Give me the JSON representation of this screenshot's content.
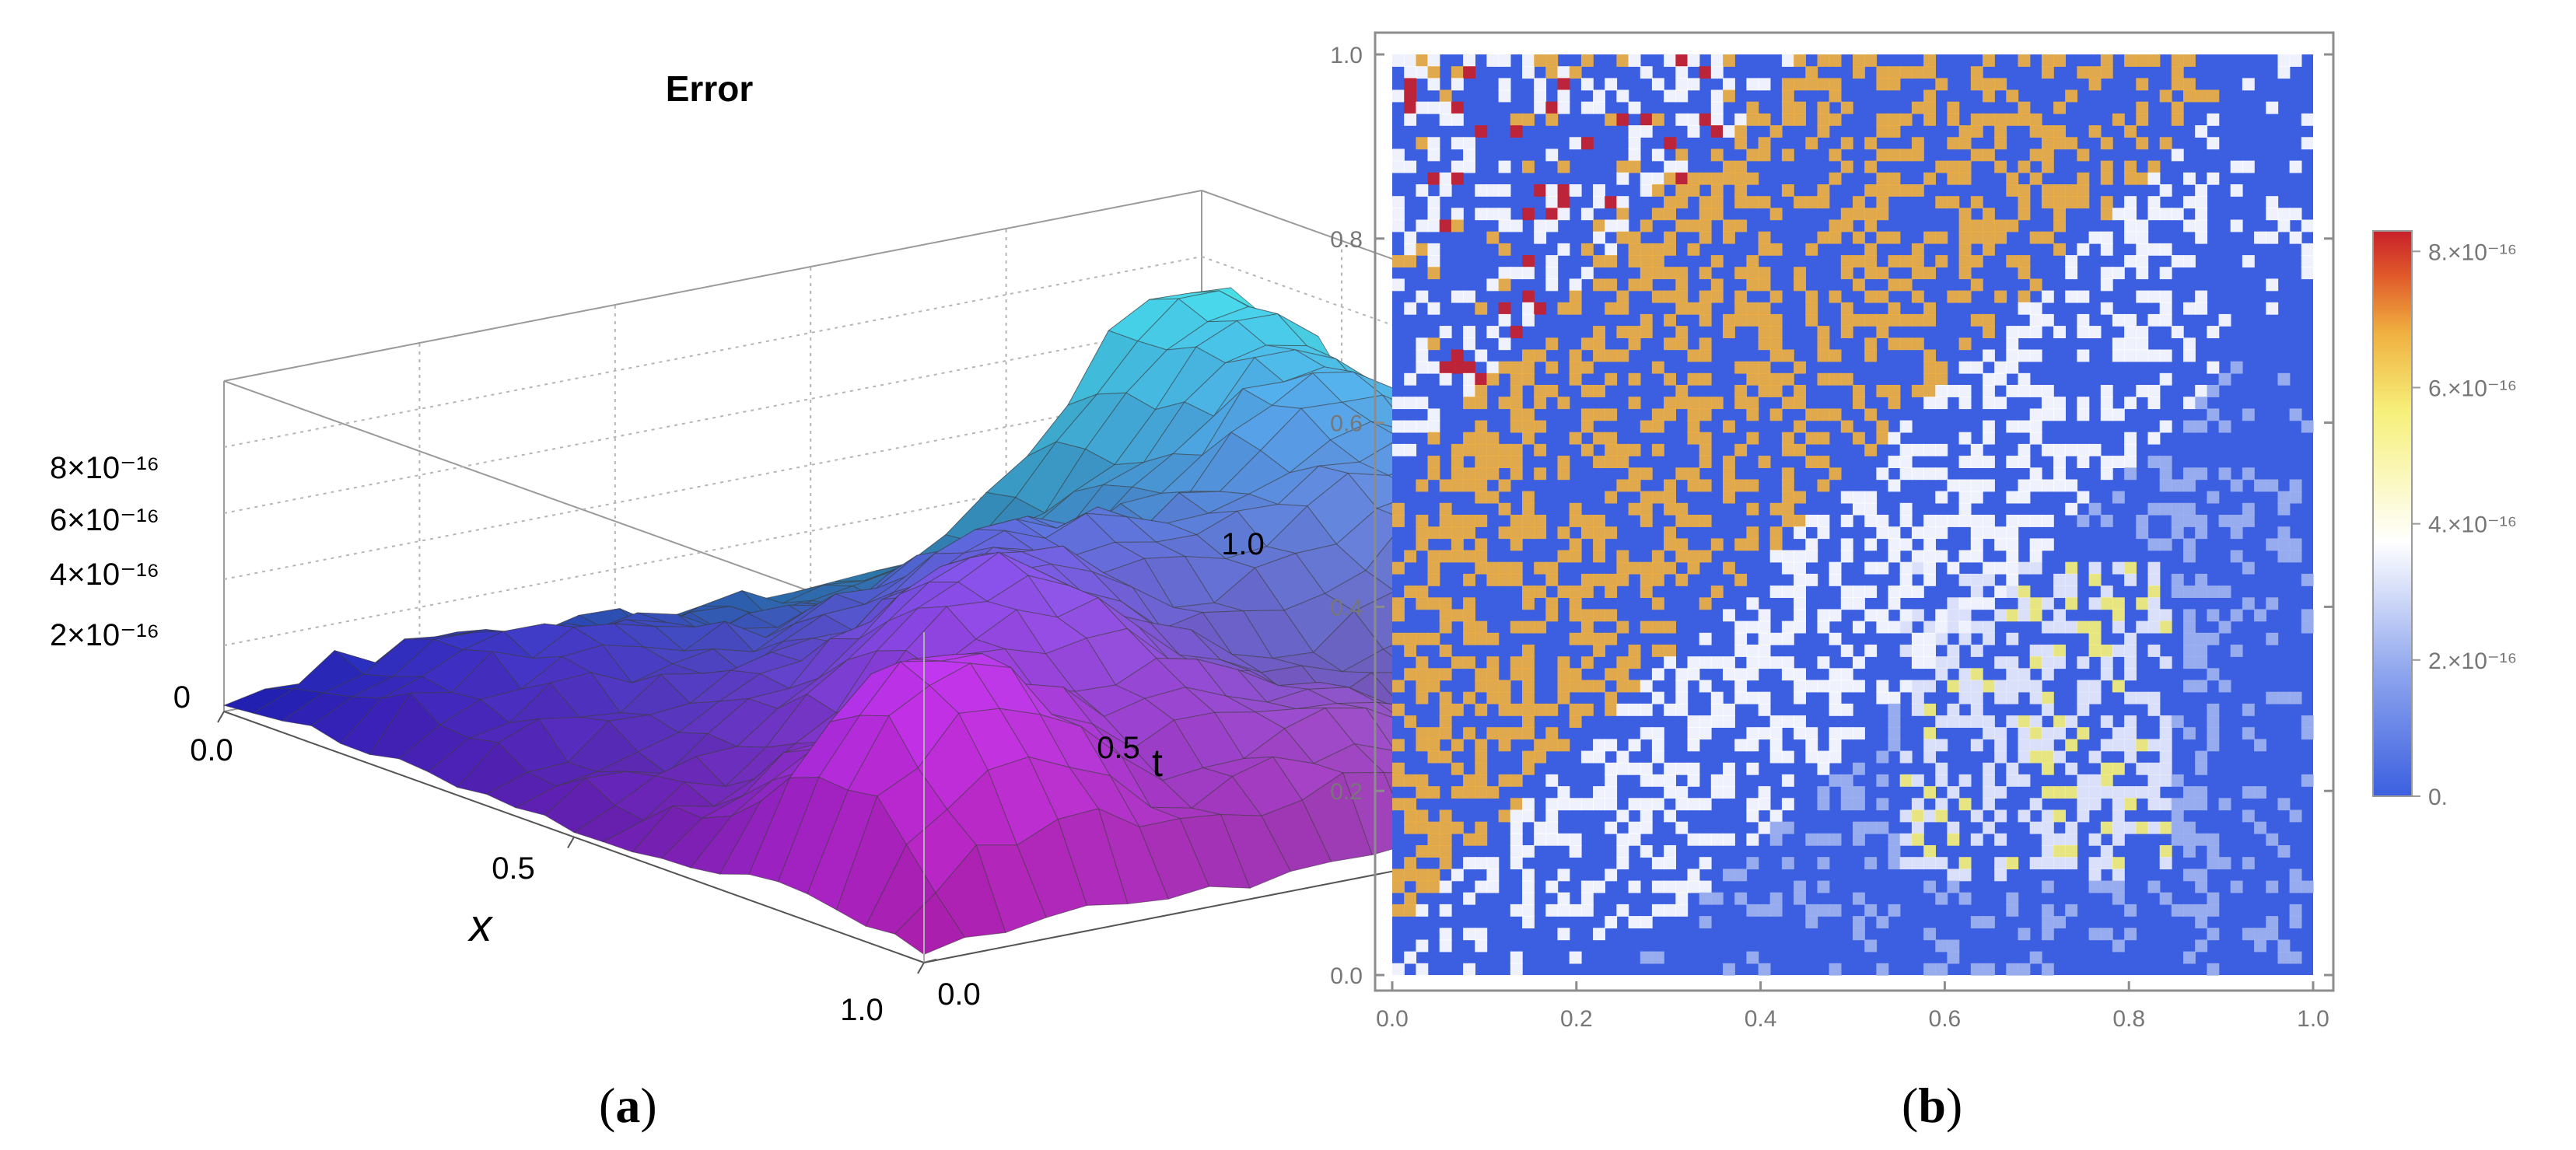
{
  "panels": {
    "a": {
      "open": "(",
      "letter": "a",
      "close": ")"
    },
    "b": {
      "open": "(",
      "letter": "b",
      "close": ")"
    }
  },
  "chart_data": [
    {
      "type": "surface3d",
      "title": "Error",
      "xlabel": "x",
      "ylabel": "t",
      "zlabel": "",
      "xlim": [
        0,
        1
      ],
      "ylim": [
        0,
        1
      ],
      "zlim": [
        0,
        8e-16
      ],
      "x_ticks": [
        "0.0",
        "0.5",
        "1.0"
      ],
      "y_ticks": [
        "0.0",
        "0.5",
        "1.0"
      ],
      "z_ticks": [
        {
          "value": 0,
          "label": "0"
        },
        {
          "value": 2e-16,
          "label": "2×10⁻¹⁶"
        },
        {
          "value": 4e-16,
          "label": "4×10⁻¹⁶"
        },
        {
          "value": 6e-16,
          "label": "6×10⁻¹⁶"
        },
        {
          "value": 8e-16,
          "label": "8×10⁻¹⁶"
        }
      ],
      "grid": true,
      "peaks": [
        {
          "x": 0.05,
          "t": 0.95,
          "z": 6.6e-16,
          "w": 0.12
        },
        {
          "x": 0.3,
          "t": 0.9,
          "z": 5.6e-16,
          "w": 0.12
        },
        {
          "x": 0.55,
          "t": 0.85,
          "z": 4.8e-16,
          "w": 0.13
        },
        {
          "x": 0.4,
          "t": 0.55,
          "z": 4.4e-16,
          "w": 0.13
        },
        {
          "x": 0.6,
          "t": 0.35,
          "z": 5.4e-16,
          "w": 0.12
        },
        {
          "x": 0.82,
          "t": 0.15,
          "z": 6.2e-16,
          "w": 0.1
        },
        {
          "x": 0.85,
          "t": 0.5,
          "z": 2.8e-16,
          "w": 0.13
        },
        {
          "x": 0.2,
          "t": 0.2,
          "z": 2e-16,
          "w": 0.14
        }
      ]
    },
    {
      "type": "heatmap",
      "xlim": [
        0,
        1
      ],
      "ylim": [
        0,
        1
      ],
      "x_ticks": [
        "0.0",
        "0.2",
        "0.4",
        "0.6",
        "0.8",
        "1.0"
      ],
      "y_ticks": [
        "0.0",
        "0.2",
        "0.4",
        "0.6",
        "0.8",
        "1.0"
      ],
      "colorbar": {
        "range": [
          0,
          8.3e-16
        ],
        "ticks": [
          {
            "value": 0,
            "label": "0."
          },
          {
            "value": 2e-16,
            "label": "2.×10⁻¹⁶"
          },
          {
            "value": 4e-16,
            "label": "4.×10⁻¹⁶"
          },
          {
            "value": 6e-16,
            "label": "6.×10⁻¹⁶"
          },
          {
            "value": 8e-16,
            "label": "8.×10⁻¹⁶"
          }
        ],
        "colors": [
          "#3b5fe0",
          "#8fa6ee",
          "#ffffff",
          "#f6f07a",
          "#f0b040",
          "#e05a2a",
          "#c8202a"
        ]
      }
    }
  ]
}
